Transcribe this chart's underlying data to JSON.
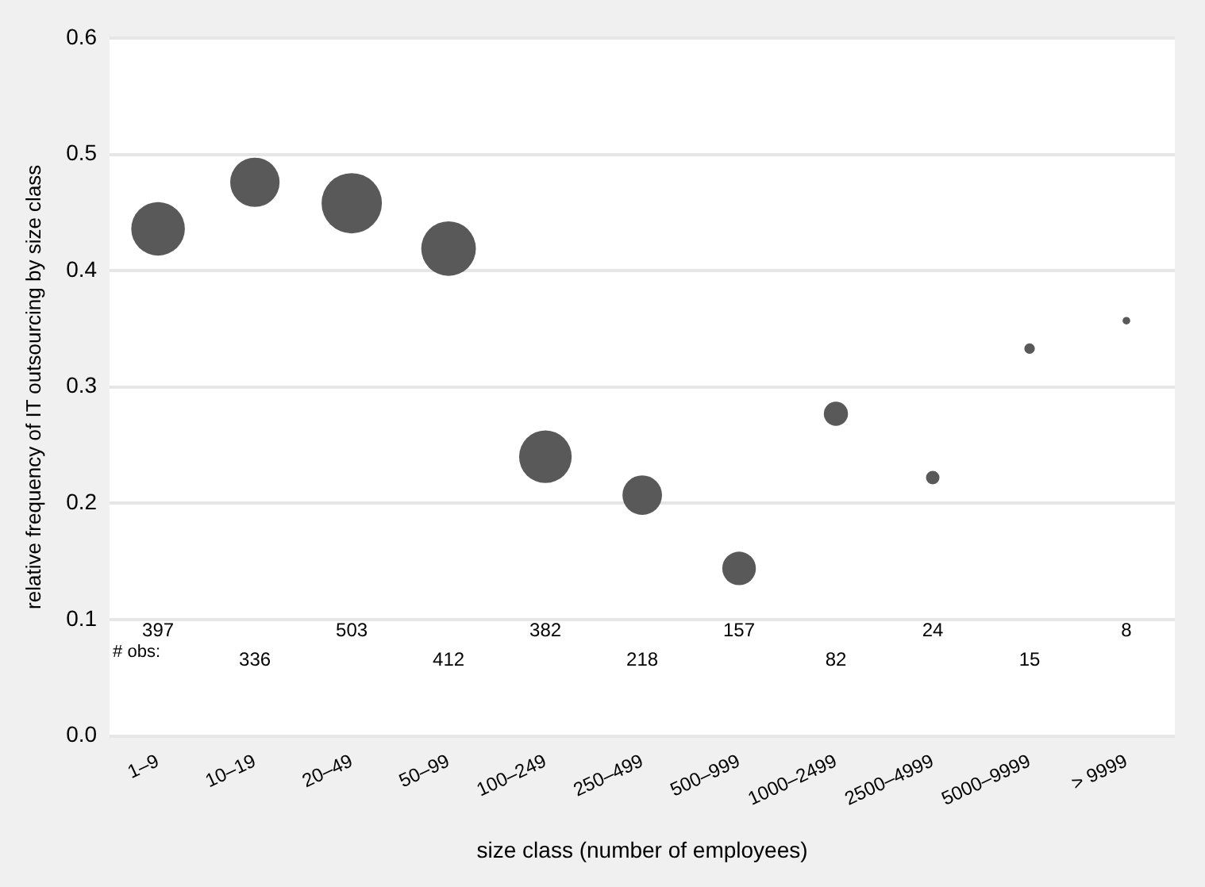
{
  "chart_data": {
    "type": "bubble",
    "xlabel": "size class (number of employees)",
    "ylabel": "relative frequency of IT outsourcing by size class",
    "categories": [
      "1–9",
      "10–19",
      "20–49",
      "50–99",
      "100–249",
      "250–499",
      "500–999",
      "1000–2499",
      "2500–4999",
      "5000–9999",
      "> 9999"
    ],
    "series": [
      {
        "color": "#595959",
        "values": [
          0.436,
          0.476,
          0.458,
          0.419,
          0.24,
          0.207,
          0.144,
          0.277,
          0.222,
          0.333,
          0.357
        ],
        "sizes": [
          0.79,
          0.67,
          1,
          0.82,
          0.76,
          0.43,
          0.31,
          0.16,
          0.05,
          0.03,
          0.016
        ]
      }
    ],
    "ylim": [
      0,
      0.6
    ],
    "yticks": [
      {
        "value": 0,
        "label": "0.0"
      },
      0.1,
      0.2,
      0.3,
      0.4,
      0.5,
      0.6
    ],
    "grid": "y",
    "legend": false,
    "marker": "circle",
    "annotations": [
      "# obs:",
      "397",
      "336",
      "503",
      "412",
      "382",
      "218",
      "157",
      "82",
      "24",
      "15",
      "8"
    ]
  }
}
